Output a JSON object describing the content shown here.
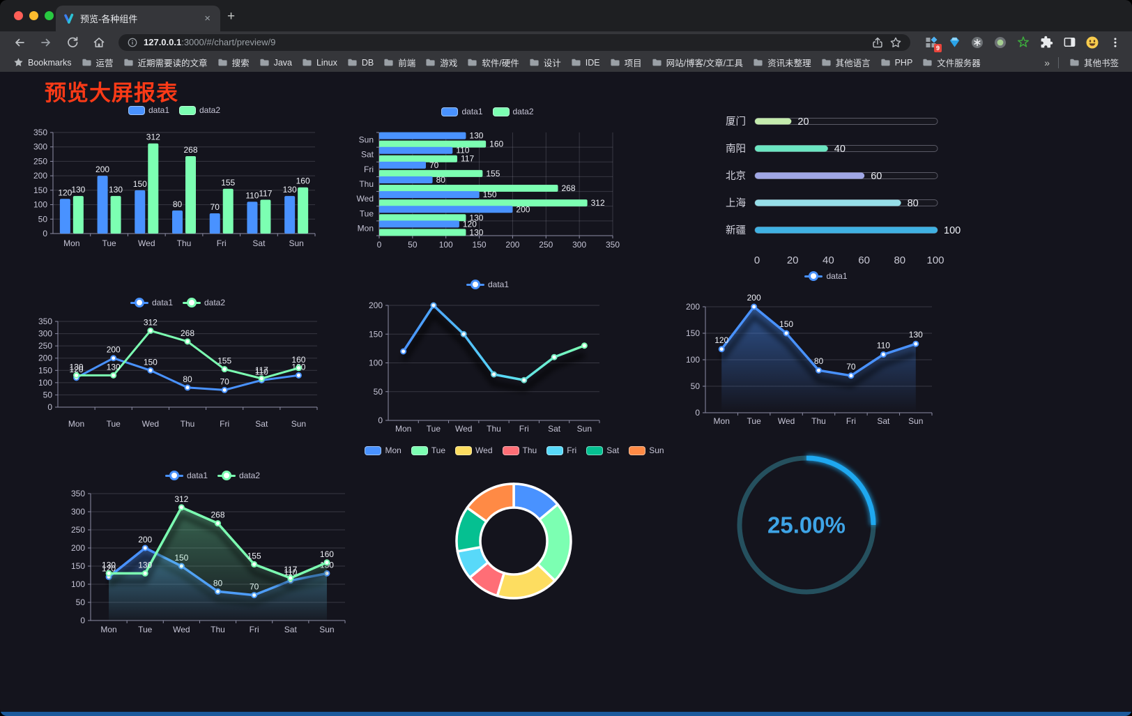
{
  "browser": {
    "tab_title": "预览-各种组件",
    "url_host": "127.0.0.1",
    "url_rest": ":3000/#/chart/preview/9",
    "extension_badge": "9",
    "bookmarks_root_label": "Bookmarks",
    "bookmark_folders": [
      "运营",
      "近期需要读的文章",
      "搜索",
      "Java",
      "Linux",
      "DB",
      "前端",
      "游戏",
      "软件/硬件",
      "设计",
      "IDE",
      "项目",
      "网站/博客/文章/工具",
      "资讯未整理",
      "其他语言",
      "PHP",
      "文件服务器"
    ],
    "overflow_chevron": "»",
    "other_bookmarks_label": "其他书签",
    "icons": {
      "tab_close": "×",
      "new_tab": "+"
    }
  },
  "page": {
    "title": "预览大屏报表"
  },
  "theme": {
    "page_background": "#14141d",
    "title_color": "#fb3a17",
    "axis_text": "#c6c5d6",
    "value_text": "#eef0f6",
    "grid_line": "rgba(197,196,214,0.2)",
    "axis_line": "#8e8ea6",
    "bottom_strip": "#1c5a9c",
    "palette": [
      "#4992ff",
      "#7cffb2",
      "#fddd60",
      "#ff6e76",
      "#58d9f9",
      "#05c091",
      "#ff8a45"
    ]
  },
  "chart_data": [
    {
      "id": "bar-vertical",
      "type": "bar",
      "legend": [
        "data1",
        "data2"
      ],
      "categories": [
        "Mon",
        "Tue",
        "Wed",
        "Thu",
        "Fri",
        "Sat",
        "Sun"
      ],
      "series": [
        {
          "name": "data1",
          "color": "#4992ff",
          "values": [
            120,
            200,
            150,
            80,
            70,
            110,
            130
          ]
        },
        {
          "name": "data2",
          "color": "#7cffb2",
          "values": [
            130,
            130,
            312,
            268,
            155,
            117,
            160
          ]
        }
      ],
      "ylim": [
        0,
        350
      ],
      "yticks": [
        0,
        50,
        100,
        150,
        200,
        250,
        300,
        350
      ],
      "value_labels": true,
      "grid": true
    },
    {
      "id": "bar-horizontal",
      "type": "bar-horizontal",
      "legend": [
        "data1",
        "data2"
      ],
      "categories": [
        "Mon",
        "Tue",
        "Wed",
        "Thu",
        "Fri",
        "Sat",
        "Sun"
      ],
      "display_order_top_to_bottom": [
        "Sun",
        "Sat",
        "Fri",
        "Thu",
        "Wed",
        "Tue",
        "Mon"
      ],
      "series": [
        {
          "name": "data1",
          "color": "#4992ff",
          "values": [
            120,
            200,
            150,
            80,
            70,
            110,
            130
          ]
        },
        {
          "name": "data2",
          "color": "#7cffb2",
          "values": [
            130,
            130,
            312,
            268,
            155,
            117,
            160
          ]
        }
      ],
      "xlim": [
        0,
        350
      ],
      "xticks": [
        0,
        50,
        100,
        150,
        200,
        250,
        300,
        350
      ],
      "value_labels": true,
      "grid": true
    },
    {
      "id": "progress-list",
      "type": "progress",
      "max": 100,
      "xticks": [
        0,
        20,
        40,
        60,
        80,
        100
      ],
      "rows": [
        {
          "label": "厦门",
          "value": 20,
          "color": "#c4ebad"
        },
        {
          "label": "南阳",
          "value": 40,
          "color": "#6be6c1"
        },
        {
          "label": "北京",
          "value": 60,
          "color": "#a0a7e6"
        },
        {
          "label": "上海",
          "value": 80,
          "color": "#96dee8"
        },
        {
          "label": "新疆",
          "value": 100,
          "color": "#3fb1e3"
        }
      ]
    },
    {
      "id": "line-two-series",
      "type": "line",
      "legend": [
        "data1",
        "data2"
      ],
      "categories": [
        "Mon",
        "Tue",
        "Wed",
        "Thu",
        "Fri",
        "Sat",
        "Sun"
      ],
      "series": [
        {
          "name": "data1",
          "color": "#4992ff",
          "values": [
            120,
            200,
            150,
            80,
            70,
            110,
            130
          ]
        },
        {
          "name": "data2",
          "color": "#7cffb2",
          "values": [
            130,
            130,
            312,
            268,
            155,
            117,
            160
          ]
        }
      ],
      "ylim": [
        0,
        350
      ],
      "yticks": [
        0,
        50,
        100,
        150,
        200,
        250,
        300,
        350
      ],
      "value_labels": true,
      "grid": true
    },
    {
      "id": "line-gradient",
      "type": "line-gradient",
      "legend": [
        "data1"
      ],
      "categories": [
        "Mon",
        "Tue",
        "Wed",
        "Thu",
        "Fri",
        "Sat",
        "Sun"
      ],
      "values": [
        120,
        200,
        150,
        80,
        70,
        110,
        130
      ],
      "ylim": [
        0,
        200
      ],
      "yticks": [
        0,
        50,
        100,
        150,
        200
      ],
      "gradient": [
        "#4992ff",
        "#7cffb2"
      ],
      "value_labels": false,
      "grid": true
    },
    {
      "id": "area-single",
      "type": "area",
      "legend": [
        "data1"
      ],
      "color": "#4992ff",
      "categories": [
        "Mon",
        "Tue",
        "Wed",
        "Thu",
        "Fri",
        "Sat",
        "Sun"
      ],
      "values": [
        120,
        200,
        150,
        80,
        70,
        110,
        130
      ],
      "ylim": [
        0,
        200
      ],
      "yticks": [
        0,
        50,
        100,
        150,
        200
      ],
      "value_labels": true,
      "grid": true
    },
    {
      "id": "area-two-series",
      "type": "area-double",
      "legend": [
        "data1",
        "data2"
      ],
      "categories": [
        "Mon",
        "Tue",
        "Wed",
        "Thu",
        "Fri",
        "Sat",
        "Sun"
      ],
      "series": [
        {
          "name": "data1",
          "color": "#4992ff",
          "values": [
            120,
            200,
            150,
            80,
            70,
            110,
            130
          ]
        },
        {
          "name": "data2",
          "color": "#7cffb2",
          "values": [
            130,
            130,
            312,
            268,
            155,
            117,
            160
          ]
        }
      ],
      "ylim": [
        0,
        350
      ],
      "yticks": [
        0,
        50,
        100,
        150,
        200,
        250,
        300,
        350
      ],
      "value_labels": true,
      "grid": true
    },
    {
      "id": "donut",
      "type": "donut",
      "legend": [
        "Mon",
        "Tue",
        "Wed",
        "Thu",
        "Fri",
        "Sat",
        "Sun"
      ],
      "values": [
        120,
        200,
        150,
        80,
        70,
        110,
        130
      ],
      "colors": [
        "#4992ff",
        "#7cffb2",
        "#fddd60",
        "#ff6e76",
        "#58d9f9",
        "#05c091",
        "#ff8a45"
      ]
    },
    {
      "id": "gauge",
      "type": "gauge",
      "value": 25,
      "label": "25.00%",
      "color": "#1fa8f0",
      "track_color": "#25505e",
      "text_color": "#3ea4e6"
    }
  ]
}
